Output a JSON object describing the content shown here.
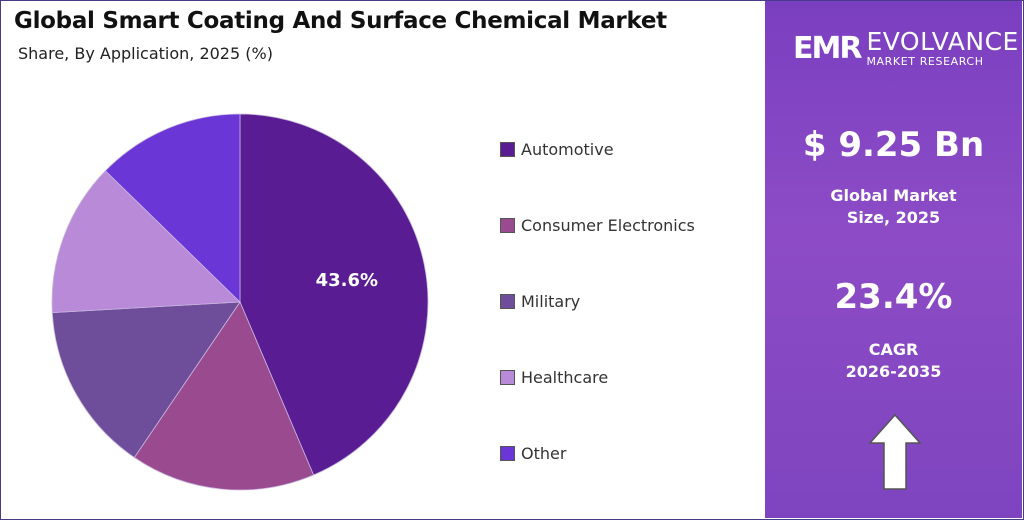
{
  "title": "Global Smart Coating And Surface Chemical Market",
  "subtitle": "Share, By Application, 2025 (%)",
  "chart_data": {
    "type": "pie",
    "title": "Global Smart Coating And Surface Chemical Market",
    "subtitle": "Share, By Application, 2025 (%)",
    "categories": [
      "Automotive",
      "Consumer Electronics",
      "Military",
      "Healthcare",
      "Other"
    ],
    "values": [
      43.6,
      15.9,
      14.6,
      13.2,
      12.7
    ],
    "colors": [
      "#5a1c92",
      "#9a4a8e",
      "#6e4d9a",
      "#b98ad8",
      "#6a36d6"
    ],
    "data_labels": [
      "43.6%",
      "",
      "",
      "",
      ""
    ],
    "legend_position": "right",
    "start": "top",
    "direction": "clockwise"
  },
  "panel": {
    "logo_mark": "EMR",
    "logo_name": "EVOLVANCE",
    "logo_sub": "MARKET RESEARCH",
    "market_size": "$ 9.25 Bn",
    "market_size_label_1": "Global Market",
    "market_size_label_2": "Size, 2025",
    "cagr": "23.4%",
    "cagr_label_1": "CAGR",
    "cagr_label_2": "2026-2035",
    "arrow_icon": "up-arrow-icon"
  }
}
